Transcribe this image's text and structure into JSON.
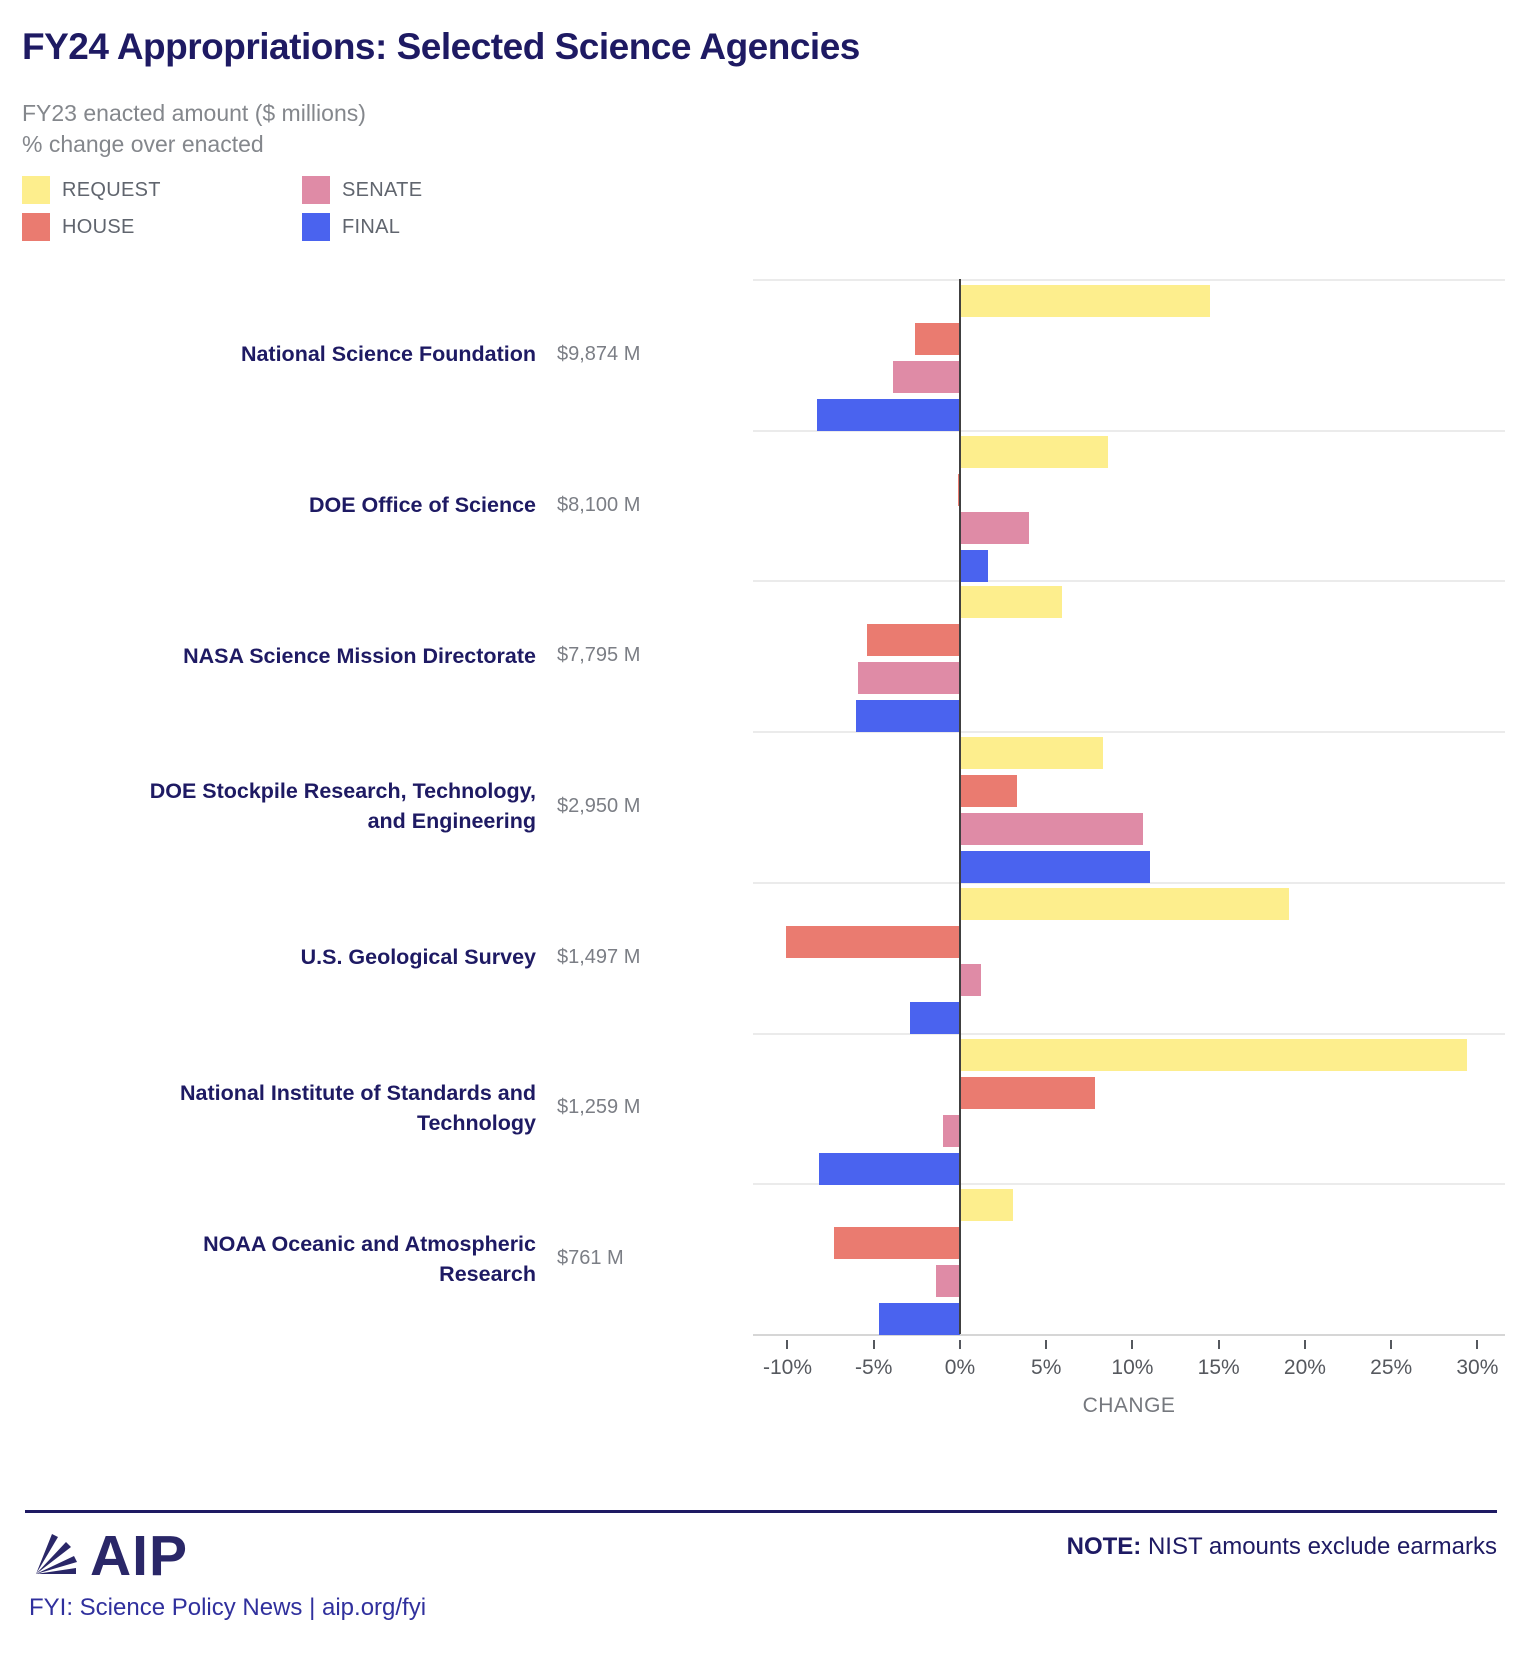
{
  "header": {
    "title": "FY24 Appropriations: Selected Science Agencies",
    "subtitle_line1": "FY23 enacted amount ($ millions)",
    "subtitle_line2": "% change over enacted"
  },
  "chart_data": {
    "type": "bar",
    "orientation": "horizontal",
    "title": "FY24 Appropriations: Selected Science Agencies",
    "xlabel": "CHANGE",
    "xlim": [
      -12,
      31.6
    ],
    "grid": "row-separators",
    "legend_position": "top-left",
    "x_ticks": [
      {
        "value": -10,
        "label": "-10%"
      },
      {
        "value": -5,
        "label": "-5%"
      },
      {
        "value": 0,
        "label": "0%"
      },
      {
        "value": 5,
        "label": "5%"
      },
      {
        "value": 10,
        "label": "10%"
      },
      {
        "value": 15,
        "label": "15%"
      },
      {
        "value": 20,
        "label": "20%"
      },
      {
        "value": 25,
        "label": "25%"
      },
      {
        "value": 30,
        "label": "30%"
      }
    ],
    "series": [
      {
        "key": "request",
        "label": "REQUEST",
        "color": "#fdee8d"
      },
      {
        "key": "house",
        "label": "HOUSE",
        "color": "#ea7b70"
      },
      {
        "key": "senate",
        "label": "SENATE",
        "color": "#df8ba6"
      },
      {
        "key": "final",
        "label": "FINAL",
        "color": "#4a63ef"
      }
    ],
    "unit": "percent change over FY23 enacted",
    "agencies": [
      {
        "name": "National Science Foundation",
        "label_lines": "National Science Foundation",
        "enacted_label": "$9,874 M",
        "values": {
          "request": 14.5,
          "house": -2.6,
          "senate": -3.9,
          "final": -8.3
        }
      },
      {
        "name": "DOE Office of Science",
        "label_lines": "DOE Office of Science",
        "enacted_label": "$8,100 M",
        "values": {
          "request": 8.6,
          "house": -0.12,
          "senate": 4.0,
          "final": 1.6
        }
      },
      {
        "name": "NASA Science Mission Directorate",
        "label_lines": "NASA Science Mission Directorate",
        "enacted_label": "$7,795 M",
        "values": {
          "request": 5.9,
          "house": -5.4,
          "senate": -5.9,
          "final": -6.0
        }
      },
      {
        "name": "DOE Stockpile Research, Technology, and Engineering",
        "label_lines": "DOE Stockpile Research, Technology,\nand Engineering",
        "enacted_label": "$2,950 M",
        "values": {
          "request": 8.3,
          "house": 3.3,
          "senate": 10.6,
          "final": 11.0
        }
      },
      {
        "name": "U.S. Geological Survey",
        "label_lines": "U.S. Geological Survey",
        "enacted_label": "$1,497 M",
        "values": {
          "request": 19.1,
          "house": -10.1,
          "senate": 1.2,
          "final": -2.9
        }
      },
      {
        "name": "National Institute of Standards and Technology",
        "label_lines": "National Institute of Standards and\nTechnology",
        "enacted_label": "$1,259 M",
        "values": {
          "request": 29.4,
          "house": 7.8,
          "senate": -1.0,
          "final": -8.2
        }
      },
      {
        "name": "NOAA Oceanic and Atmospheric Research",
        "label_lines": "NOAA Oceanic and Atmospheric\nResearch",
        "enacted_label": "$761 M",
        "values": {
          "request": 3.1,
          "house": -7.3,
          "senate": -1.4,
          "final": -4.7
        }
      }
    ]
  },
  "footer": {
    "logo_text": "AIP",
    "tagline": "FYI: Science Policy News | aip.org/fyi",
    "note_bold": "NOTE:",
    "note_rest": " NIST amounts exclude earmarks"
  }
}
